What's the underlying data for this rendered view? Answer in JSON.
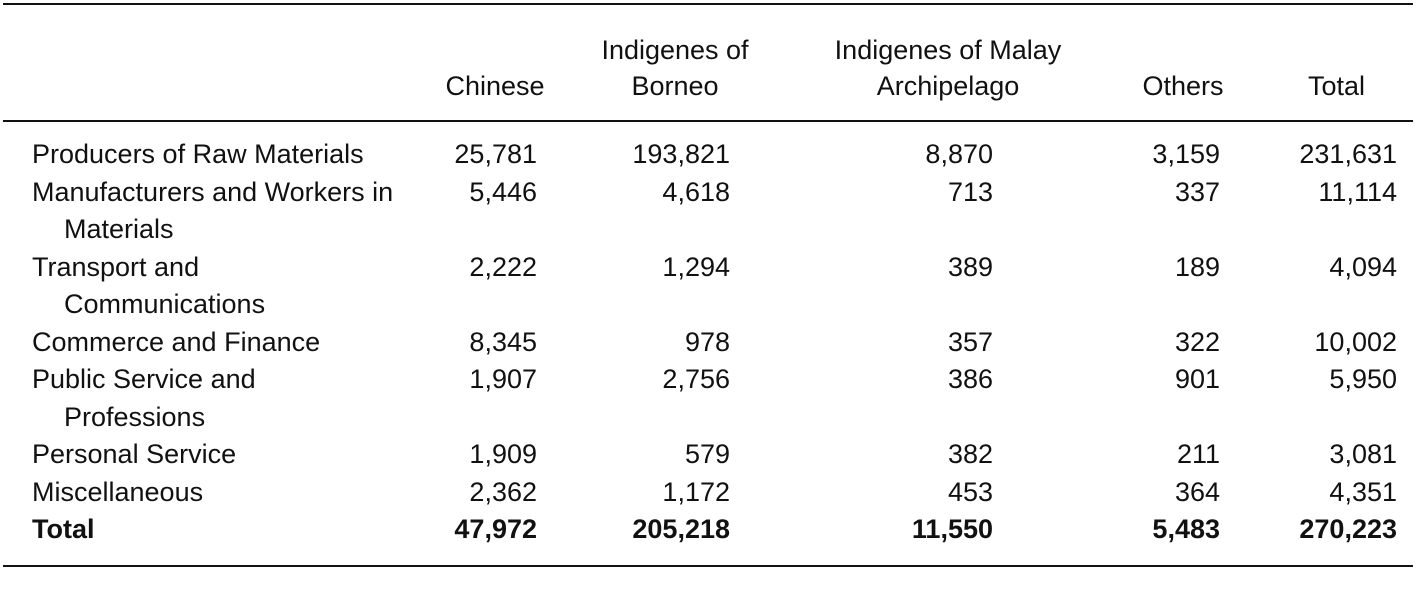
{
  "table": {
    "columns": [
      "Chinese",
      "Indigenes of Borneo",
      "Indigenes of Malay Archipelago",
      "Others",
      "Total"
    ],
    "rows": [
      {
        "label": "Producers of Raw Materials",
        "values": [
          "25,781",
          "193,821",
          "8,870",
          "3,159",
          "231,631"
        ]
      },
      {
        "label": "Manufacturers and Workers in Materials",
        "values": [
          "5,446",
          "4,618",
          "713",
          "337",
          "11,114"
        ]
      },
      {
        "label": "Transport and Communications",
        "values": [
          "2,222",
          "1,294",
          "389",
          "189",
          "4,094"
        ]
      },
      {
        "label": "Commerce and Finance",
        "values": [
          "8,345",
          "978",
          "357",
          "322",
          "10,002"
        ]
      },
      {
        "label": "Public Service and Professions",
        "values": [
          "1,907",
          "2,756",
          "386",
          "901",
          "5,950"
        ]
      },
      {
        "label": "Personal Service",
        "values": [
          "1,909",
          "579",
          "382",
          "211",
          "3,081"
        ]
      },
      {
        "label": "Miscellaneous",
        "values": [
          "2,362",
          "1,172",
          "453",
          "364",
          "4,351"
        ]
      },
      {
        "label": "Total",
        "values": [
          "47,972",
          "205,218",
          "11,550",
          "5,483",
          "270,223"
        ]
      }
    ]
  }
}
